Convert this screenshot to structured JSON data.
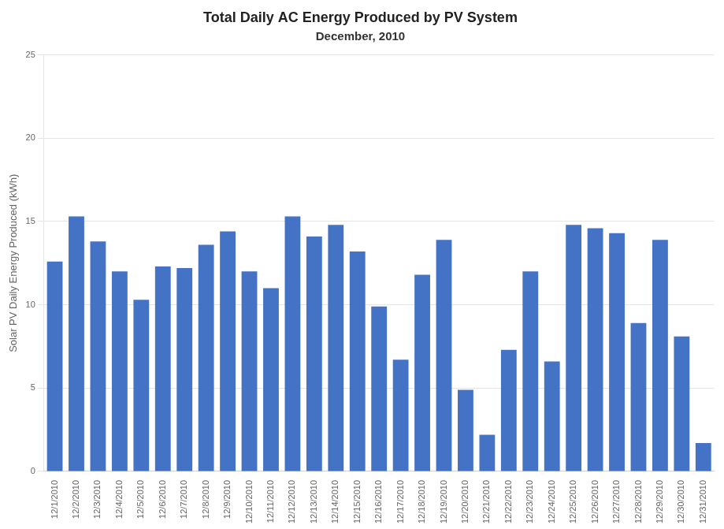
{
  "chart_data": {
    "type": "bar",
    "title": "Total Daily AC Energy Produced by PV System",
    "subtitle": "December, 2010",
    "ylabel": "Solar PV Daily Energy Produced (kWh)",
    "categories": [
      "12/1/2010",
      "12/2/2010",
      "12/3/2010",
      "12/4/2010",
      "12/5/2010",
      "12/6/2010",
      "12/7/2010",
      "12/8/2010",
      "12/9/2010",
      "12/10/2010",
      "12/11/2010",
      "12/12/2010",
      "12/13/2010",
      "12/14/2010",
      "12/15/2010",
      "12/16/2010",
      "12/17/2010",
      "12/18/2010",
      "12/19/2010",
      "12/20/2010",
      "12/21/2010",
      "12/22/2010",
      "12/23/2010",
      "12/24/2010",
      "12/25/2010",
      "12/26/2010",
      "12/27/2010",
      "12/28/2010",
      "12/29/2010",
      "12/30/2010",
      "12/31/2010"
    ],
    "values": [
      12.6,
      15.3,
      13.8,
      12.0,
      10.3,
      12.3,
      12.2,
      13.6,
      14.4,
      12.0,
      11.0,
      15.3,
      14.1,
      14.8,
      13.2,
      9.9,
      6.7,
      11.8,
      13.9,
      4.9,
      2.2,
      7.3,
      12.0,
      6.6,
      14.8,
      14.6,
      14.3,
      8.9,
      13.9,
      8.1,
      1.7
    ],
    "color": "#4472C4",
    "ylim": [
      0,
      25
    ],
    "yticks": [
      0,
      5,
      10,
      15,
      20,
      25
    ],
    "grid": true
  }
}
